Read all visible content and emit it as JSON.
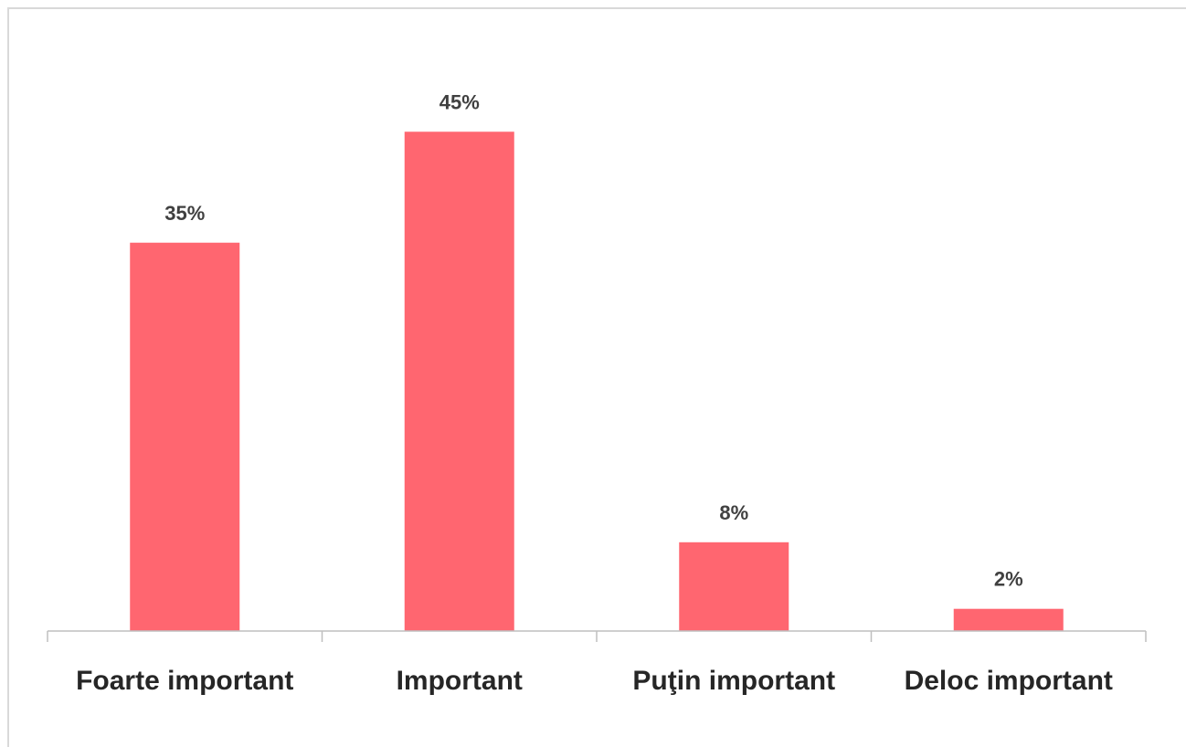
{
  "chart_data": {
    "type": "bar",
    "categories": [
      "Foarte important",
      "Important",
      "Puţin important",
      "Deloc important"
    ],
    "values": [
      35,
      45,
      8,
      2
    ],
    "value_labels": [
      "35%",
      "45%",
      "8%",
      "2%"
    ],
    "value_unit": "%",
    "title": "",
    "xlabel": "",
    "ylabel": "",
    "ylim": [
      0,
      50
    ],
    "grid": false,
    "legend": "none",
    "bar_color": "#ff6670",
    "axis_color": "#bfbfbf"
  }
}
